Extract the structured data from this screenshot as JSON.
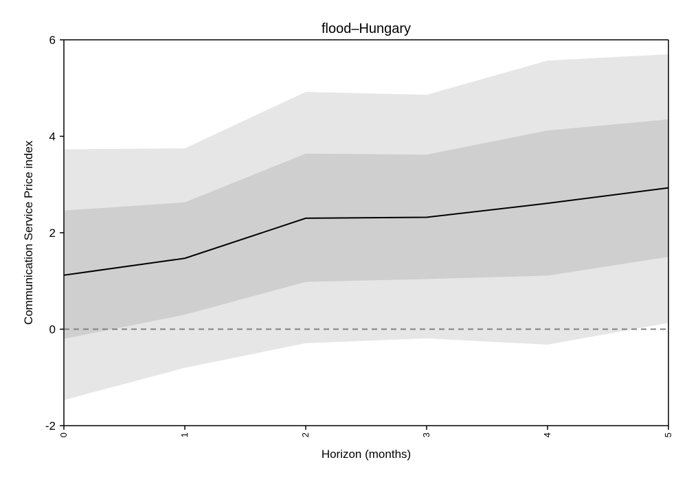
{
  "chart_data": {
    "type": "area",
    "title": "flood–Hungary",
    "xlabel": "Horizon (months)",
    "ylabel": "Communication Service Price index",
    "x": [
      0,
      1,
      2,
      3,
      4,
      5
    ],
    "xlim": [
      0,
      5
    ],
    "ylim": [
      -2,
      6
    ],
    "x_ticks": [
      "0",
      "1",
      "2",
      "3",
      "4",
      "5"
    ],
    "y_ticks": [
      "-2",
      "0",
      "2",
      "4",
      "6"
    ],
    "series": [
      {
        "role": "outer-band",
        "lower": [
          -1.47,
          -0.8,
          -0.29,
          -0.19,
          -0.32,
          0.13
        ],
        "upper": [
          3.73,
          3.75,
          4.92,
          4.86,
          5.57,
          5.7
        ],
        "color": "#e6e6e6"
      },
      {
        "role": "inner-band",
        "lower": [
          -0.2,
          0.3,
          0.98,
          1.04,
          1.11,
          1.5
        ],
        "upper": [
          2.46,
          2.63,
          3.64,
          3.62,
          4.12,
          4.35
        ],
        "color": "#cfcfcf"
      },
      {
        "role": "point-estimate",
        "values": [
          1.12,
          1.47,
          2.3,
          2.32,
          2.61,
          2.93
        ],
        "color": "#000000"
      }
    ],
    "reference_line": {
      "y": 0,
      "style": "dashed",
      "color": "#808080"
    },
    "grid": false,
    "legend": "none"
  }
}
